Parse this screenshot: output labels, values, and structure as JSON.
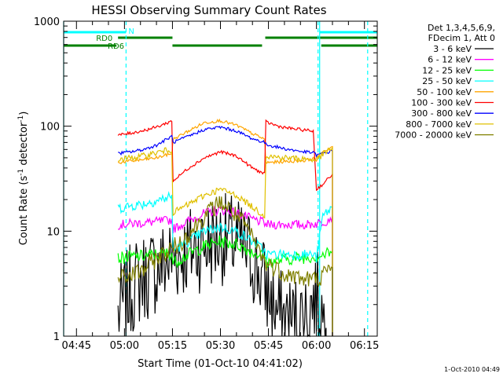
{
  "chart_data": {
    "type": "line",
    "title": "HESSI Observing Summary Count Rates",
    "xlabel": "Start Time (01-Oct-10 04:41:02)",
    "ylabel_main": "Count Rate (s",
    "ylabel_sup1": "-1",
    "ylabel_mid": " detector",
    "ylabel_sup2": "-1",
    "ylabel_end": ")",
    "x_unit": "minutes",
    "xlim": [
      281,
      379
    ],
    "ylim": [
      1,
      1000
    ],
    "yscale": "log",
    "xticks": [
      {
        "value": 285,
        "label": "04:45"
      },
      {
        "value": 300,
        "label": "05:00"
      },
      {
        "value": 315,
        "label": "05:15"
      },
      {
        "value": 330,
        "label": "05:30"
      },
      {
        "value": 345,
        "label": "05:45"
      },
      {
        "value": 360,
        "label": "06:00"
      },
      {
        "value": 375,
        "label": "06:15"
      }
    ],
    "yticks": [
      {
        "value": 1,
        "label": "1"
      },
      {
        "value": 10,
        "label": "10"
      },
      {
        "value": 100,
        "label": "100"
      },
      {
        "value": 1000,
        "label": "1000"
      }
    ],
    "legend_header": [
      "Det 1,3,4,5,6,9,",
      "FDecim 1, Att 0"
    ],
    "legend_position": "right",
    "series": [
      {
        "name": "3 - 6 keV",
        "color": "#000000",
        "points": [
          [
            298,
            1.6
          ],
          [
            302,
            2.8
          ],
          [
            305,
            3.5
          ],
          [
            308,
            4.0
          ],
          [
            312,
            4.8
          ],
          [
            316,
            5.8
          ],
          [
            320,
            6.5
          ],
          [
            325,
            7.5
          ],
          [
            330,
            8.5
          ],
          [
            335,
            8.0
          ],
          [
            340,
            5.5
          ],
          [
            344,
            3.0
          ],
          [
            348,
            1.6
          ],
          [
            352,
            1.4
          ],
          [
            356,
            1.5
          ],
          [
            360,
            2.5
          ],
          [
            363,
            1.2
          ]
        ]
      },
      {
        "name": "6 - 12 keV",
        "color": "#ff00ff",
        "points": [
          [
            298,
            11.5
          ],
          [
            302,
            11.8
          ],
          [
            306,
            12.0
          ],
          [
            310,
            12.3
          ],
          [
            314.8,
            12.8
          ],
          [
            315.2,
            10.5
          ],
          [
            320,
            12.5
          ],
          [
            325,
            14.8
          ],
          [
            330,
            16.0
          ],
          [
            335,
            15.0
          ],
          [
            340,
            13.0
          ],
          [
            343.8,
            12.0
          ],
          [
            344.2,
            11.5
          ],
          [
            350,
            11.6
          ],
          [
            356,
            11.5
          ],
          [
            360,
            11.8
          ],
          [
            363,
            12.5
          ],
          [
            365,
            14.0
          ]
        ]
      },
      {
        "name": "12 - 25 keV",
        "color": "#00ff00",
        "points": [
          [
            298,
            5.5
          ],
          [
            302,
            5.7
          ],
          [
            306,
            5.8
          ],
          [
            310,
            6.0
          ],
          [
            314.8,
            6.2
          ],
          [
            315.2,
            5.0
          ],
          [
            320,
            6.0
          ],
          [
            325,
            7.2
          ],
          [
            330,
            8.0
          ],
          [
            335,
            7.5
          ],
          [
            340,
            6.3
          ],
          [
            343.8,
            5.8
          ],
          [
            344.2,
            5.0
          ],
          [
            350,
            5.4
          ],
          [
            356,
            5.6
          ],
          [
            360,
            5.8
          ],
          [
            363,
            6.0
          ],
          [
            365,
            6.5
          ]
        ]
      },
      {
        "name": "25 - 50 keV",
        "color": "#00ffff",
        "points": [
          [
            298,
            16.5
          ],
          [
            302,
            17.5
          ],
          [
            306,
            18.2
          ],
          [
            310,
            19.5
          ],
          [
            314.8,
            21.5
          ],
          [
            315.2,
            6.5
          ],
          [
            320,
            8.0
          ],
          [
            325,
            10.0
          ],
          [
            330,
            11.0
          ],
          [
            335,
            10.0
          ],
          [
            340,
            8.0
          ],
          [
            343.8,
            6.5
          ],
          [
            344.2,
            6.0
          ],
          [
            350,
            6.0
          ],
          [
            356,
            6.0
          ],
          [
            359,
            6.0
          ],
          [
            360,
            5.5
          ],
          [
            362,
            14.0
          ],
          [
            365,
            17.0
          ]
        ]
      },
      {
        "name": "50 - 100 keV",
        "color": "#ffa500",
        "points": [
          [
            298,
            45
          ],
          [
            302,
            46.5
          ],
          [
            306,
            48
          ],
          [
            310,
            50
          ],
          [
            314.8,
            55
          ],
          [
            315.2,
            75
          ],
          [
            320,
            90
          ],
          [
            325,
            108
          ],
          [
            330,
            113
          ],
          [
            335,
            102
          ],
          [
            340,
            85
          ],
          [
            343.8,
            75
          ],
          [
            344.2,
            45
          ],
          [
            350,
            46
          ],
          [
            356,
            47
          ],
          [
            359,
            49
          ],
          [
            360,
            48
          ],
          [
            362,
            57
          ],
          [
            365,
            64
          ]
        ]
      },
      {
        "name": "100 - 300 keV",
        "color": "#ff0000",
        "points": [
          [
            298,
            82
          ],
          [
            302,
            86
          ],
          [
            306,
            91
          ],
          [
            310,
            98
          ],
          [
            314.8,
            112
          ],
          [
            315.2,
            30
          ],
          [
            320,
            40
          ],
          [
            325,
            50
          ],
          [
            330,
            57
          ],
          [
            335,
            52
          ],
          [
            340,
            40
          ],
          [
            343.8,
            35
          ],
          [
            344.2,
            110
          ],
          [
            348,
            100
          ],
          [
            352,
            95
          ],
          [
            356,
            92
          ],
          [
            359,
            90
          ],
          [
            360,
            25
          ],
          [
            362,
            28
          ],
          [
            365,
            35
          ]
        ]
      },
      {
        "name": "300 - 800 keV",
        "color": "#0000ff",
        "points": [
          [
            298,
            55
          ],
          [
            302,
            57
          ],
          [
            306,
            60
          ],
          [
            310,
            66
          ],
          [
            314.8,
            80
          ],
          [
            315.2,
            70
          ],
          [
            320,
            80
          ],
          [
            325,
            93
          ],
          [
            330,
            98
          ],
          [
            335,
            90
          ],
          [
            340,
            76
          ],
          [
            343.8,
            70
          ],
          [
            344.2,
            67
          ],
          [
            350,
            61
          ],
          [
            356,
            57
          ],
          [
            359,
            56
          ],
          [
            360,
            53
          ],
          [
            362,
            55
          ],
          [
            365,
            58
          ]
        ]
      },
      {
        "name": "800 - 7000 keV",
        "color": "#e0c000",
        "points": [
          [
            298,
            48
          ],
          [
            302,
            50
          ],
          [
            306,
            52
          ],
          [
            310,
            56
          ],
          [
            314.8,
            60
          ],
          [
            315.2,
            15
          ],
          [
            320,
            18
          ],
          [
            325,
            22
          ],
          [
            330,
            25
          ],
          [
            335,
            22
          ],
          [
            340,
            17
          ],
          [
            343.8,
            14
          ],
          [
            344.2,
            52
          ],
          [
            350,
            50
          ],
          [
            356,
            49
          ],
          [
            359,
            48
          ],
          [
            360,
            48
          ],
          [
            362,
            54
          ],
          [
            365,
            62
          ]
        ]
      },
      {
        "name": "7000 - 20000 keV",
        "color": "#808000",
        "points": [
          [
            298,
            3.5
          ],
          [
            302,
            3.8
          ],
          [
            306,
            4.3
          ],
          [
            310,
            5.5
          ],
          [
            314.8,
            6.8
          ],
          [
            318,
            8.0
          ],
          [
            322,
            11.0
          ],
          [
            326,
            15.0
          ],
          [
            330,
            19.0
          ],
          [
            334,
            15.0
          ],
          [
            338,
            11.0
          ],
          [
            341,
            7.5
          ],
          [
            344,
            5.0
          ],
          [
            350,
            4.0
          ],
          [
            356,
            3.5
          ],
          [
            360,
            3.5
          ],
          [
            363,
            4.0
          ],
          [
            365,
            4.5
          ]
        ]
      }
    ],
    "annotations": {
      "vertical_solid": [
        {
          "x": 281,
          "color": "#00ffff"
        },
        {
          "x": 361,
          "color": "#00ffff"
        }
      ],
      "vertical_dashed": [
        {
          "x": 300.5,
          "color": "#00ffff"
        },
        {
          "x": 376,
          "color": "#00ffff"
        },
        {
          "x": 360.5,
          "color": "#00ffff"
        }
      ],
      "flags": [
        {
          "label": "N",
          "color": "#00ffff",
          "level": 1,
          "segments": [
            [
              281,
              300.5
            ],
            [
              361,
              379
            ]
          ]
        },
        {
          "label": "RD0",
          "color": "#008000",
          "level": 2,
          "segments": [
            [
              298,
              315
            ],
            [
              344,
              379
            ]
          ]
        },
        {
          "label": "RD6",
          "color": "#008000",
          "level": 3,
          "segments": [
            [
              281,
              297.5
            ],
            [
              315,
              343
            ],
            [
              361.5,
              379
            ]
          ]
        }
      ]
    }
  },
  "footer": {
    "timestamp": "1-Oct-2010 04:49"
  }
}
